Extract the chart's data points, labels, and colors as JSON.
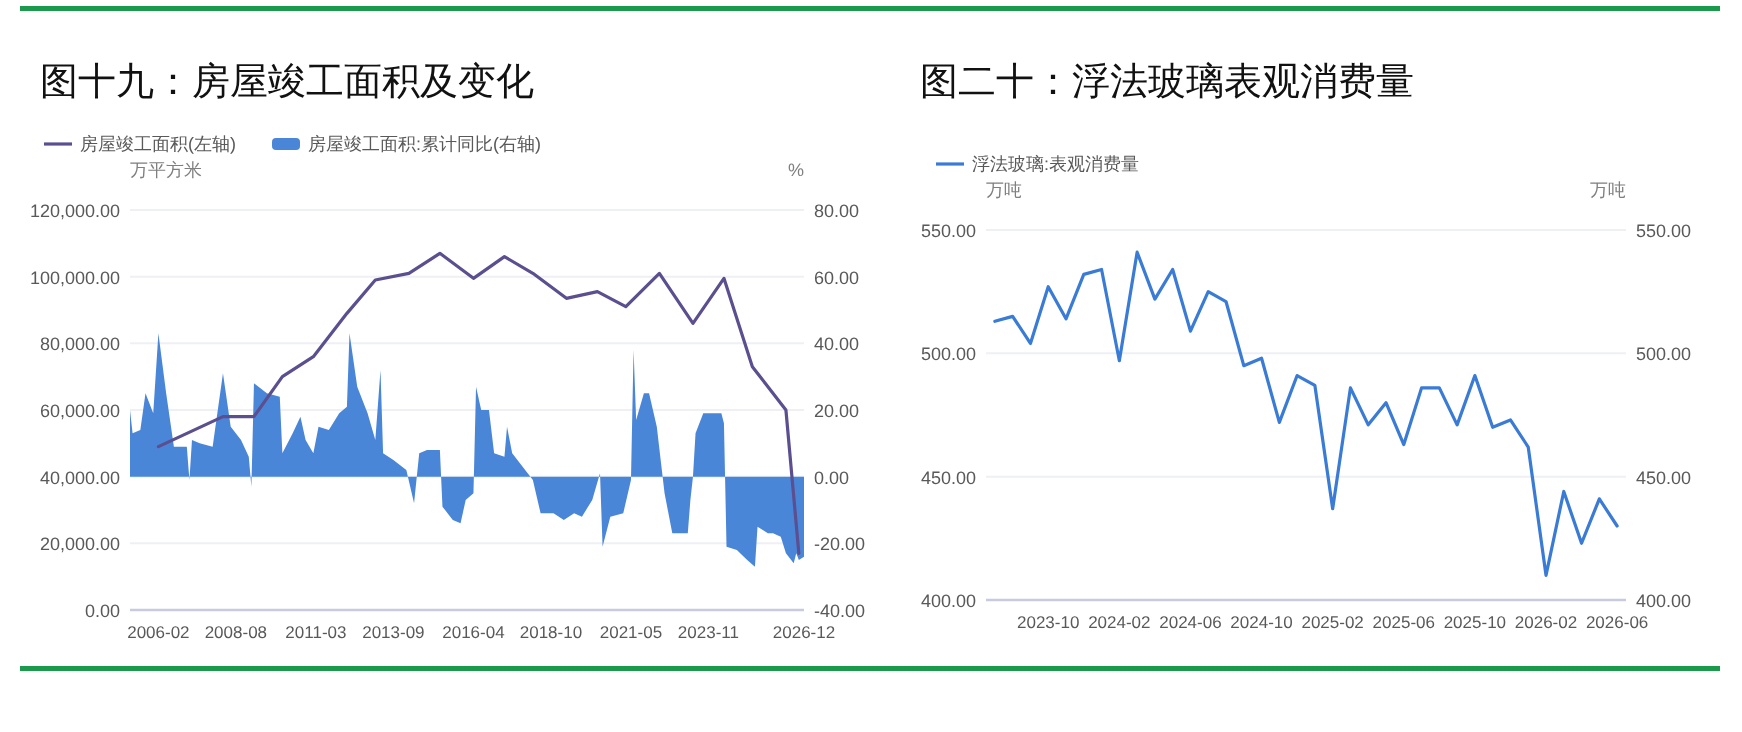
{
  "chart_data": [
    {
      "type": "line",
      "title": "图十九：房屋竣工面积及变化",
      "ylabel": "万平方米",
      "y2label": "%",
      "xlim": [
        "2005-03",
        "2026-12"
      ],
      "xticks": [
        "2006-02",
        "2008-08",
        "2011-03",
        "2013-09",
        "2016-04",
        "2018-10",
        "2021-05",
        "2023-11",
        "2026-12"
      ],
      "ylim": [
        0,
        120000
      ],
      "yticks": [
        {
          "value": 0,
          "label": "0.00"
        },
        {
          "value": 20000,
          "label": "20,000.00"
        },
        {
          "value": 40000,
          "label": "40,000.00"
        },
        {
          "value": 60000,
          "label": "60,000.00"
        },
        {
          "value": 80000,
          "label": "80,000.00"
        },
        {
          "value": 100000,
          "label": "100,000.00"
        },
        {
          "value": 120000,
          "label": "120,000.00"
        }
      ],
      "y2lim": [
        -40,
        80
      ],
      "y2ticks": [
        {
          "value": -40,
          "label": "-40.00"
        },
        {
          "value": -20,
          "label": "-20.00"
        },
        {
          "value": 0,
          "label": "0.00"
        },
        {
          "value": 20,
          "label": "20.00"
        },
        {
          "value": 40,
          "label": "40.00"
        },
        {
          "value": 60,
          "label": "60.00"
        },
        {
          "value": 80,
          "label": "80.00"
        }
      ],
      "grid": "y",
      "legend": "top left",
      "series": [
        {
          "name": "房屋竣工面积(左轴)",
          "color": "#5b4f8f",
          "x": [
            "2006-02",
            "2008-03",
            "2009-03",
            "2010-02",
            "2011-02",
            "2012-03",
            "2013-02",
            "2014-03",
            "2015-03",
            "2016-04",
            "2017-04",
            "2018-03",
            "2019-04",
            "2020-04",
            "2021-03",
            "2022-04",
            "2023-05",
            "2024-05",
            "2025-04",
            "2026-05",
            "2026-10"
          ],
          "values": [
            49000,
            58000,
            58000,
            70000,
            76000,
            89000,
            99000,
            101000,
            107000,
            99500,
            106000,
            101000,
            93500,
            95500,
            91000,
            101000,
            86000,
            99500,
            73000,
            60000,
            17000
          ]
        },
        {
          "name": "房屋竣工面积:累计同比(右轴)",
          "type": "area",
          "axis": "y2",
          "color": "#4a86d8",
          "x": [
            "2005-03",
            "2005-04",
            "2005-07",
            "2005-09",
            "2005-12",
            "2006-02",
            "2006-05",
            "2006-08",
            "2007-01",
            "2007-02",
            "2007-03",
            "2007-06",
            "2007-11",
            "2008-03",
            "2008-06",
            "2008-10",
            "2009-01",
            "2009-02",
            "2009-03",
            "2009-08",
            "2010-01",
            "2010-02",
            "2010-06",
            "2010-09",
            "2010-11",
            "2011-02",
            "2011-04",
            "2011-08",
            "2011-12",
            "2012-03",
            "2012-04",
            "2012-07",
            "2012-11",
            "2013-02",
            "2013-04",
            "2013-05",
            "2013-09",
            "2014-02",
            "2014-05",
            "2014-07",
            "2014-10",
            "2015-03",
            "2015-04",
            "2015-08",
            "2015-11",
            "2016-01",
            "2016-04",
            "2016-05",
            "2016-07",
            "2016-10",
            "2016-12",
            "2017-04",
            "2017-05",
            "2017-07",
            "2018-01",
            "2018-03",
            "2018-06",
            "2018-11",
            "2019-03",
            "2019-07",
            "2019-10",
            "2020-02",
            "2020-05",
            "2020-06",
            "2020-09",
            "2021-02",
            "2021-05",
            "2021-06",
            "2021-07",
            "2021-10",
            "2021-12",
            "2022-03",
            "2022-06",
            "2022-09",
            "2023-03",
            "2023-04",
            "2023-05",
            "2023-06",
            "2023-09",
            "2024-04",
            "2024-05",
            "2024-06",
            "2024-10",
            "2025-02",
            "2025-05",
            "2025-06",
            "2025-10",
            "2025-12",
            "2026-03",
            "2026-05",
            "2026-08",
            "2026-09",
            "2026-10",
            "2026-12"
          ],
          "values": [
            20,
            13,
            14,
            25,
            19,
            43,
            25,
            9,
            9,
            -1,
            11,
            10,
            9,
            31,
            15,
            11,
            6,
            -3,
            28,
            25,
            24,
            7,
            13,
            18,
            11,
            7,
            15,
            14,
            19,
            21,
            43,
            27,
            19,
            11,
            32,
            7,
            5,
            2,
            -8,
            7,
            8,
            8,
            -9,
            -13,
            -14,
            -7,
            -5,
            27,
            20,
            20,
            7,
            6,
            15,
            7,
            1,
            -1,
            -11,
            -11,
            -13,
            -11,
            -12,
            -7,
            1,
            -21,
            -12,
            -11,
            -1,
            38,
            17,
            25,
            25,
            15,
            -5,
            -17,
            -17,
            -7,
            0,
            13,
            19,
            19,
            16,
            -21,
            -22,
            -25,
            -27,
            -15,
            -17,
            -17,
            -18,
            -23,
            -26,
            -23,
            -25,
            -24
          ]
        }
      ]
    },
    {
      "type": "line",
      "title": "图二十：浮法玻璃表观消费量",
      "ylabel": "万吨",
      "y2label": "万吨",
      "categories": [
        null,
        null,
        null,
        "2023-10",
        null,
        null,
        null,
        "2024-02",
        null,
        null,
        null,
        "2024-06",
        null,
        null,
        null,
        "2024-10",
        null,
        null,
        null,
        "2025-02",
        null,
        null,
        null,
        "2025-06",
        null,
        null,
        null,
        "2025-10",
        null,
        null,
        null,
        "2026-02",
        null,
        null,
        null,
        "2026-06"
      ],
      "ylim": [
        400,
        550
      ],
      "yticks": [
        {
          "value": 400,
          "label": "400.00"
        },
        {
          "value": 450,
          "label": "450.00"
        },
        {
          "value": 500,
          "label": "500.00"
        },
        {
          "value": 550,
          "label": "550.00"
        }
      ],
      "y2lim": [
        400,
        550
      ],
      "y2ticks": [
        {
          "value": 400,
          "label": "400.00"
        },
        {
          "value": 450,
          "label": "450.00"
        },
        {
          "value": 500,
          "label": "500.00"
        },
        {
          "value": 550,
          "label": "550.00"
        }
      ],
      "grid": "y",
      "legend": "top left",
      "series": [
        {
          "name": "浮法玻璃:表观消费量",
          "color": "#3a7bd5",
          "values": [
            513,
            515,
            504,
            527,
            514,
            532,
            534,
            497,
            541,
            522,
            534,
            509,
            525,
            521,
            495,
            498,
            472,
            491,
            487,
            437,
            486,
            471,
            480,
            463,
            486,
            486,
            471,
            491,
            470,
            473,
            462,
            410,
            444,
            423,
            441,
            430
          ]
        }
      ]
    }
  ]
}
